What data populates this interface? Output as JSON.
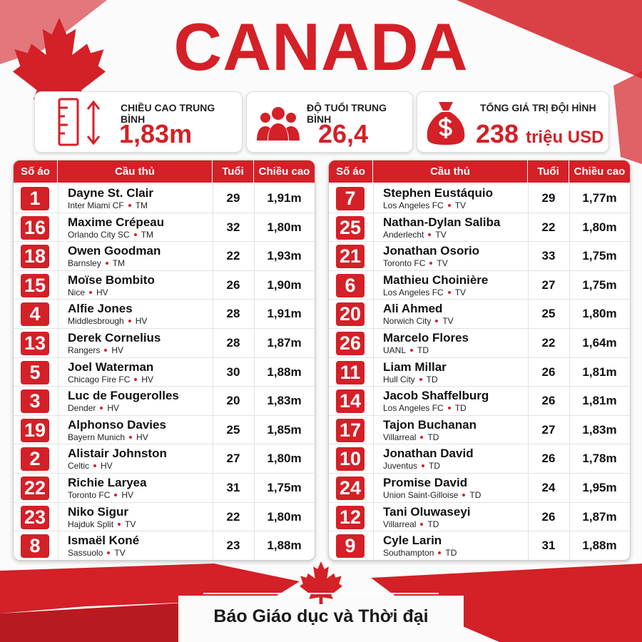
{
  "title": "CANADA",
  "stats": [
    {
      "label": "CHIỀU CAO TRUNG BÌNH",
      "value": "1,83m"
    },
    {
      "label": "ĐỘ TUỔI TRUNG BÌNH",
      "value": "26,4"
    },
    {
      "label": "TỔNG GIÁ TRỊ ĐỘI HÌNH",
      "value": "238",
      "unit": "triệu USD"
    }
  ],
  "tables": [
    {
      "header": [
        "Số áo",
        "Cầu thủ",
        "Tuổi",
        "Chiều cao"
      ],
      "rows": [
        {
          "number": 1,
          "name": "Dayne St. Clair",
          "club": "Inter Miami CF",
          "position": "TM",
          "age": 29,
          "height": "1,91m"
        },
        {
          "number": 16,
          "name": "Maxime Crépeau",
          "club": "Orlando City SC",
          "position": "TM",
          "age": 32,
          "height": "1,80m"
        },
        {
          "number": 18,
          "name": "Owen Goodman",
          "club": "Barnsley",
          "position": "TM",
          "age": 22,
          "height": "1,93m"
        },
        {
          "number": 15,
          "name": "Moïse Bombito",
          "club": "Nice",
          "position": "HV",
          "age": 26,
          "height": "1,90m"
        },
        {
          "number": 4,
          "name": "Alfie Jones",
          "club": "Middlesbrough",
          "position": "HV",
          "age": 28,
          "height": "1,91m"
        },
        {
          "number": 13,
          "name": "Derek Cornelius",
          "club": "Rangers",
          "position": "HV",
          "age": 28,
          "height": "1,87m"
        },
        {
          "number": 5,
          "name": "Joel Waterman",
          "club": "Chicago Fire FC",
          "position": "HV",
          "age": 30,
          "height": "1,88m"
        },
        {
          "number": 3,
          "name": "Luc de Fougerolles",
          "club": "Dender",
          "position": "HV",
          "age": 20,
          "height": "1,83m"
        },
        {
          "number": 19,
          "name": "Alphonso Davies",
          "club": "Bayern Munich",
          "position": "HV",
          "age": 25,
          "height": "1,85m"
        },
        {
          "number": 2,
          "name": "Alistair Johnston",
          "club": "Celtic",
          "position": "HV",
          "age": 27,
          "height": "1,80m"
        },
        {
          "number": 22,
          "name": "Richie Laryea",
          "club": "Toronto FC",
          "position": "HV",
          "age": 31,
          "height": "1,75m"
        },
        {
          "number": 23,
          "name": "Niko Sigur",
          "club": "Hajduk Split",
          "position": "TV",
          "age": 22,
          "height": "1,80m"
        },
        {
          "number": 8,
          "name": "Ismaël Koné",
          "club": "Sassuolo",
          "position": "TV",
          "age": 23,
          "height": "1,88m"
        }
      ]
    },
    {
      "header": [
        "Số áo",
        "Cầu thủ",
        "Tuổi",
        "Chiều cao"
      ],
      "rows": [
        {
          "number": 7,
          "name": "Stephen Eustáquio",
          "club": "Los Angeles FC",
          "position": "TV",
          "age": 29,
          "height": "1,77m"
        },
        {
          "number": 25,
          "name": "Nathan-Dylan Saliba",
          "club": "Anderlecht",
          "position": "TV",
          "age": 22,
          "height": "1,80m"
        },
        {
          "number": 21,
          "name": "Jonathan Osorio",
          "club": "Toronto FC",
          "position": "TV",
          "age": 33,
          "height": "1,75m"
        },
        {
          "number": 6,
          "name": "Mathieu Choinière",
          "club": "Los Angeles FC",
          "position": "TV",
          "age": 27,
          "height": "1,75m"
        },
        {
          "number": 20,
          "name": "Ali Ahmed",
          "club": "Norwich City",
          "position": "TV",
          "age": 25,
          "height": "1,80m"
        },
        {
          "number": 26,
          "name": "Marcelo Flores",
          "club": "UANL",
          "position": "TD",
          "age": 22,
          "height": "1,64m"
        },
        {
          "number": 11,
          "name": "Liam Millar",
          "club": "Hull City",
          "position": "TD",
          "age": 26,
          "height": "1,81m"
        },
        {
          "number": 14,
          "name": "Jacob Shaffelburg",
          "club": "Los Angeles FC",
          "position": "TD",
          "age": 26,
          "height": "1,81m"
        },
        {
          "number": 17,
          "name": "Tajon Buchanan",
          "club": "Villarreal",
          "position": "TD",
          "age": 27,
          "height": "1,83m"
        },
        {
          "number": 10,
          "name": "Jonathan David",
          "club": "Juventus",
          "position": "TD",
          "age": 26,
          "height": "1,78m"
        },
        {
          "number": 24,
          "name": "Promise David",
          "club": "Union Saint-Gilloise",
          "position": "TD",
          "age": 24,
          "height": "1,95m"
        },
        {
          "number": 12,
          "name": "Tani Oluwaseyi",
          "club": "Villarreal",
          "position": "TD",
          "age": 26,
          "height": "1,87m"
        },
        {
          "number": 9,
          "name": "Cyle Larin",
          "club": "Southampton",
          "position": "TD",
          "age": 31,
          "height": "1,88m"
        }
      ]
    }
  ],
  "footer": "Báo Giáo dục và Thời đại"
}
